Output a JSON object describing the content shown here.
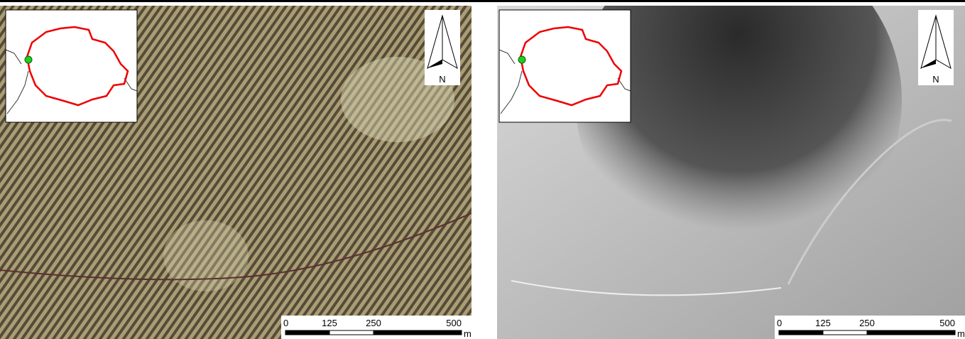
{
  "panels": [
    {
      "scale_bar": {
        "ticks": [
          0,
          125,
          250,
          500
        ],
        "unit": "m"
      },
      "north_arrow": "N"
    },
    {
      "scale_bar": {
        "ticks": [
          0,
          125,
          250,
          500
        ],
        "unit": "m"
      },
      "north_arrow": "N"
    }
  ]
}
